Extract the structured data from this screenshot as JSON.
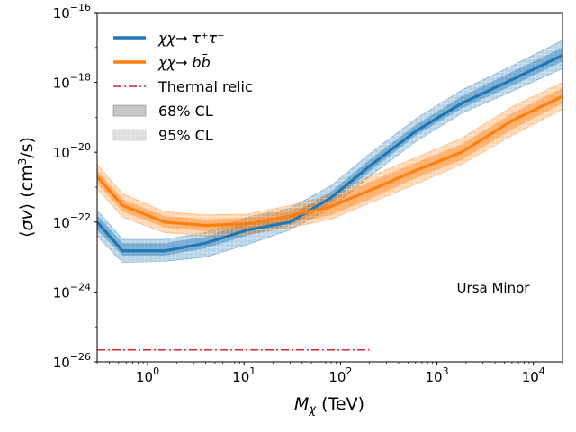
{
  "chart_data": {
    "type": "line",
    "title": "",
    "xlabel": "M_χ (TeV)",
    "ylabel": "⟨σv⟩ (cm³/s)",
    "xscale": "log",
    "yscale": "log",
    "xlim": [
      0.3,
      20000
    ],
    "ylim": [
      1e-26,
      1e-16
    ],
    "grid": false,
    "legend_position": "top-left",
    "annotation": "Ursa Minor",
    "x_tick_labels": [
      {
        "value": 1,
        "base": "10",
        "exp": "0"
      },
      {
        "value": 10,
        "base": "10",
        "exp": "1"
      },
      {
        "value": 100,
        "base": "10",
        "exp": "2"
      },
      {
        "value": 1000,
        "base": "10",
        "exp": "3"
      },
      {
        "value": 10000,
        "base": "10",
        "exp": "4"
      }
    ],
    "y_tick_labels": [
      {
        "value": 1e-26,
        "base": "10",
        "exp": "−26"
      },
      {
        "value": 1e-24,
        "base": "10",
        "exp": "−24"
      },
      {
        "value": 1e-22,
        "base": "10",
        "exp": "−22"
      },
      {
        "value": 1e-20,
        "base": "10",
        "exp": "−20"
      },
      {
        "value": 1e-18,
        "base": "10",
        "exp": "−18"
      },
      {
        "value": 1e-16,
        "base": "10",
        "exp": "−16"
      }
    ],
    "legend": [
      {
        "label": "χχ→ τ⁺τ⁻",
        "kind": "line",
        "color": "#1f77b4"
      },
      {
        "label": "χχ→ bb̄",
        "kind": "line",
        "color": "#ff7f0e"
      },
      {
        "label": "Thermal relic",
        "kind": "dashdot",
        "color": "#d62728"
      },
      {
        "label": "68% CL",
        "kind": "band68",
        "color": "#999999"
      },
      {
        "label": "95% CL",
        "kind": "band95",
        "color": "#cccccc"
      }
    ],
    "series": [
      {
        "name": "χχ→ τ⁺τ⁻",
        "color": "#1f77b4",
        "x": [
          0.3,
          0.55,
          1.5,
          4,
          11,
          30,
          80,
          200,
          600,
          1800,
          6000,
          20000
        ],
        "median": [
          1e-22,
          1.5e-23,
          1.5e-23,
          2.5e-23,
          6e-23,
          1e-22,
          5e-22,
          4e-21,
          4e-20,
          2.5e-19,
          1.2e-18,
          6e-18
        ],
        "cl68_lo": [
          6e-23,
          1.1e-23,
          1.1e-23,
          1.8e-23,
          4.2e-23,
          8e-23,
          3.5e-22,
          2.8e-21,
          3e-20,
          1.8e-19,
          8e-19,
          4e-18
        ],
        "cl68_hi": [
          1.6e-22,
          2.5e-23,
          2.5e-23,
          3.8e-23,
          1e-22,
          1.6e-22,
          7.5e-22,
          6e-21,
          6e-20,
          4e-19,
          2e-18,
          1e-17
        ],
        "cl95_lo": [
          4e-23,
          7e-24,
          7.5e-24,
          1e-23,
          2.3e-23,
          6e-23,
          2.5e-22,
          2e-21,
          2e-20,
          1.3e-19,
          5.5e-19,
          2.5e-18
        ],
        "cl95_hi": [
          2.2e-22,
          3.2e-23,
          3.2e-23,
          5e-23,
          1.4e-22,
          2.5e-22,
          1.1e-21,
          9e-21,
          9e-20,
          6e-19,
          3e-18,
          1.6e-17
        ]
      },
      {
        "name": "χχ→ bb̄",
        "color": "#ff7f0e",
        "x": [
          0.3,
          0.55,
          1.5,
          4,
          11,
          30,
          80,
          200,
          600,
          1800,
          6000,
          20000
        ],
        "median": [
          2e-21,
          3e-22,
          1e-22,
          8e-23,
          9e-23,
          1.5e-22,
          2.8e-22,
          8e-22,
          3e-21,
          1e-20,
          8e-20,
          4e-19
        ],
        "cl68_lo": [
          1.3e-21,
          2e-22,
          7e-23,
          5.5e-23,
          6e-23,
          9e-23,
          1.6e-22,
          4.5e-22,
          1.8e-21,
          6e-21,
          4.5e-20,
          2.5e-19
        ],
        "cl68_hi": [
          3e-21,
          4.5e-22,
          1.5e-22,
          1.2e-22,
          1.3e-22,
          2.2e-22,
          4.5e-22,
          1.4e-21,
          5e-21,
          1.7e-20,
          1.3e-19,
          7e-19
        ],
        "cl95_lo": [
          9e-22,
          1.4e-22,
          5e-23,
          4e-23,
          4.5e-23,
          7e-23,
          1.2e-22,
          3.5e-22,
          1.2e-21,
          4.5e-21,
          3e-20,
          1.7e-19
        ],
        "cl95_hi": [
          4.5e-21,
          6.5e-22,
          2e-22,
          1.6e-22,
          1.7e-22,
          3e-22,
          6e-22,
          2e-21,
          7e-21,
          2.5e-20,
          2e-19,
          1e-18
        ]
      }
    ],
    "thermal_relic": {
      "value": 2.2e-26,
      "x_range": [
        0.3,
        200
      ],
      "color": "#d62728"
    }
  }
}
